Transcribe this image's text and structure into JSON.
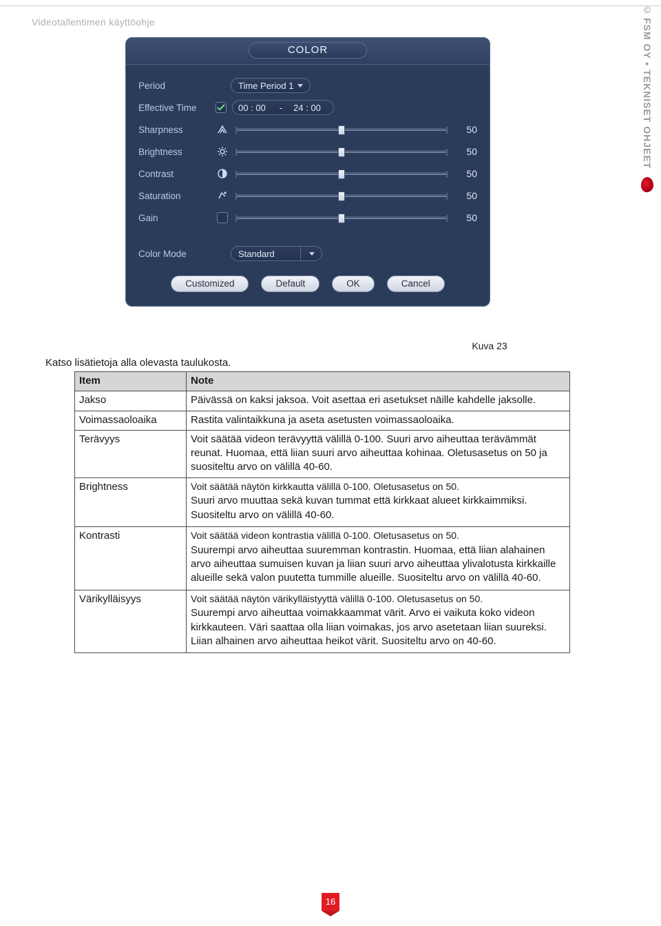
{
  "header": {
    "title": "Videotallentimen käyttöohje"
  },
  "brand": {
    "reg": "©",
    "text": "FSM OY • TEKNISET OHJEET"
  },
  "dialog": {
    "title": "COLOR",
    "period_label": "Period",
    "period_value": "Time Period 1",
    "effective_label": "Effective Time",
    "effective_checked": true,
    "time_from_h": "00",
    "time_from_m": "00",
    "time_to_h": "24",
    "time_to_m": "00",
    "sliders": [
      {
        "label": "Sharpness",
        "icon": "sharp",
        "value": 50
      },
      {
        "label": "Brightness",
        "icon": "bright",
        "value": 50
      },
      {
        "label": "Contrast",
        "icon": "contr",
        "value": 50
      },
      {
        "label": "Saturation",
        "icon": "sat",
        "value": 50
      },
      {
        "label": "Gain",
        "icon": "gain",
        "value": 50
      }
    ],
    "colormode_label": "Color Mode",
    "colormode_value": "Standard",
    "buttons": {
      "custom": "Customized",
      "default": "Default",
      "ok": "OK",
      "cancel": "Cancel"
    },
    "colors": {
      "dialog_bg": "#2b3b5a",
      "titlebar_from": "#3e5173",
      "titlebar_to": "#2f4062",
      "track": "#6a7ea1",
      "thumb_from": "#f0f3f8",
      "thumb_to": "#c9d3e6"
    }
  },
  "caption": "Kuva 23",
  "intro": "Katso lisätietoja alla olevasta taulukosta.",
  "table": {
    "head": {
      "item": "Item",
      "note": "Note"
    },
    "rows": [
      {
        "item": "Jakso",
        "note": "Päivässä on kaksi jaksoa. Voit asettaa eri asetukset näille kahdelle jaksolle."
      },
      {
        "item": "Voimassaoloaika",
        "note": "Rastita valintaikkuna ja aseta asetusten voimassaoloaika."
      },
      {
        "item": "Terävyys",
        "note": "Voit säätää videon terävyyttä välillä 0-100. Suuri arvo aiheuttaa terävämmät reunat. Huomaa, että liian suuri arvo aiheuttaa kohinaa. Oletusasetus on 50 ja suositeltu arvo on välillä 40-60."
      },
      {
        "item": "Brightness",
        "note_parts": [
          "Voit säätää näytön kirkkautta välillä 0-100. Oletusasetus on 50.",
          "Suuri arvo muuttaa sekä kuvan tummat että kirkkaat alueet kirkkaimmiksi. Suositeltu arvo on välillä 40-60."
        ]
      },
      {
        "item": "Kontrasti",
        "note_parts": [
          "Voit säätää videon kontrastia välillä 0-100. Oletusasetus on 50.",
          "Suurempi arvo aiheuttaa suuremman kontrastin. Huomaa, että liian alahainen arvo aiheuttaa sumuisen kuvan ja liian suuri arvo aiheuttaa ylivalotusta kirkkaille alueille sekä valon puutetta tummille alueille. Suositeltu arvo on välillä 40-60."
        ]
      },
      {
        "item": "Värikylläisyys",
        "note_parts": [
          "Voit säätää näytön värikylläistyyttä välillä 0-100. Oletusasetus on 50.",
          "Suurempi arvo aiheuttaa voimakkaammat värit. Arvo ei vaikuta koko videon kirkkauteen. Väri saattaa olla liian voimakas, jos arvo asetetaan liian suureksi. Liian alhainen arvo aiheuttaa heikot värit. Suositeltu arvo on 40-60."
        ]
      }
    ]
  },
  "page_number": "16"
}
